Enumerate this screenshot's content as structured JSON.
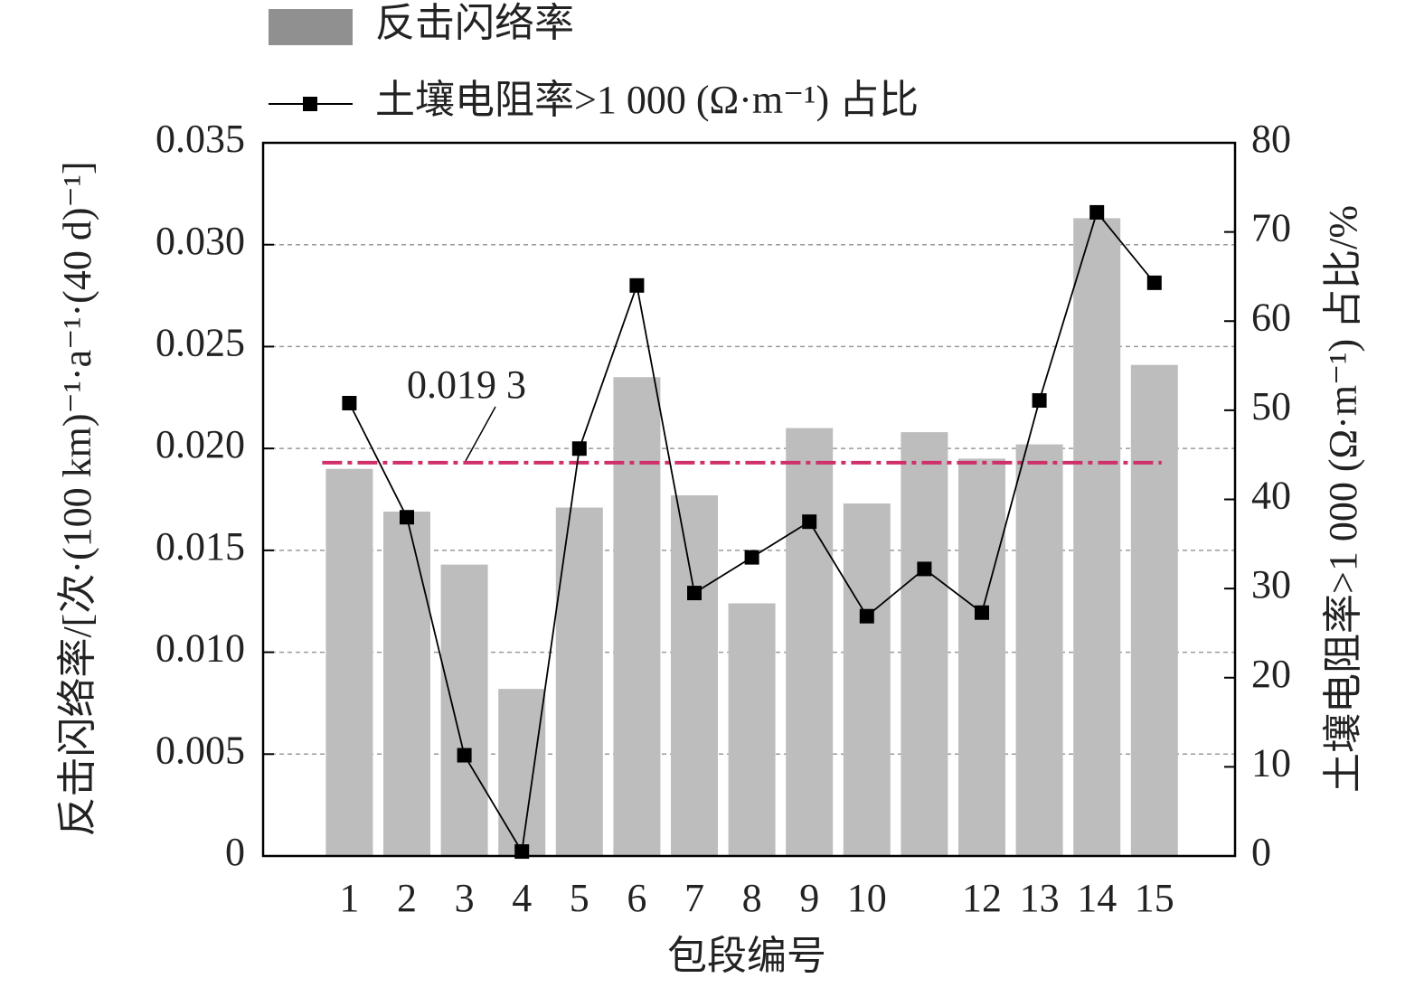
{
  "chart_data": {
    "type": "bar",
    "x_label": "包段编号",
    "y_label": "反击闪络率/[次·(100 km)⁻¹·a⁻¹·(40 d)⁻¹]",
    "y2_label": "土壤电阻率>1 000 (Ω·m⁻¹) 占比/%",
    "categories": [
      "1",
      "2",
      "3",
      "4",
      "5",
      "6",
      "7",
      "8",
      "9",
      "10",
      null,
      "12",
      "13",
      "14",
      "15"
    ],
    "series": [
      {
        "name": "反击闪络率",
        "type": "bar",
        "color": "#bdbdbd",
        "legend_color": "#909090",
        "values": [
          0.019,
          0.0169,
          0.0143,
          0.0082,
          0.0171,
          0.0235,
          0.0177,
          0.0124,
          0.021,
          0.0173,
          0.0208,
          0.0195,
          0.0202,
          0.0313,
          0.0241
        ]
      },
      {
        "name": "土壤电阻率>1 000 (Ω·m⁻¹) 占比",
        "type": "line",
        "axis": "y2",
        "color": "#000000",
        "values": [
          50.8,
          38,
          11.3,
          0.5,
          45.7,
          64,
          29.5,
          33.5,
          37.5,
          26.9,
          32.2,
          27.3,
          51.1,
          72.2,
          64.3
        ]
      }
    ],
    "reference": {
      "value": 0.0193,
      "label": "0.019 3",
      "color": "#d0306a"
    },
    "ylim": [
      0,
      0.035
    ],
    "yticks": [
      0,
      0.005,
      {
        "value": 0.01,
        "label": "0.010"
      },
      0.015,
      {
        "value": 0.02,
        "label": "0.020"
      },
      0.025,
      {
        "value": 0.03,
        "label": "0.030"
      },
      0.035
    ],
    "y2lim": [
      0,
      80
    ],
    "y2ticks": [
      0,
      10,
      20,
      30,
      40,
      50,
      60,
      70,
      80
    ],
    "grid": true
  }
}
